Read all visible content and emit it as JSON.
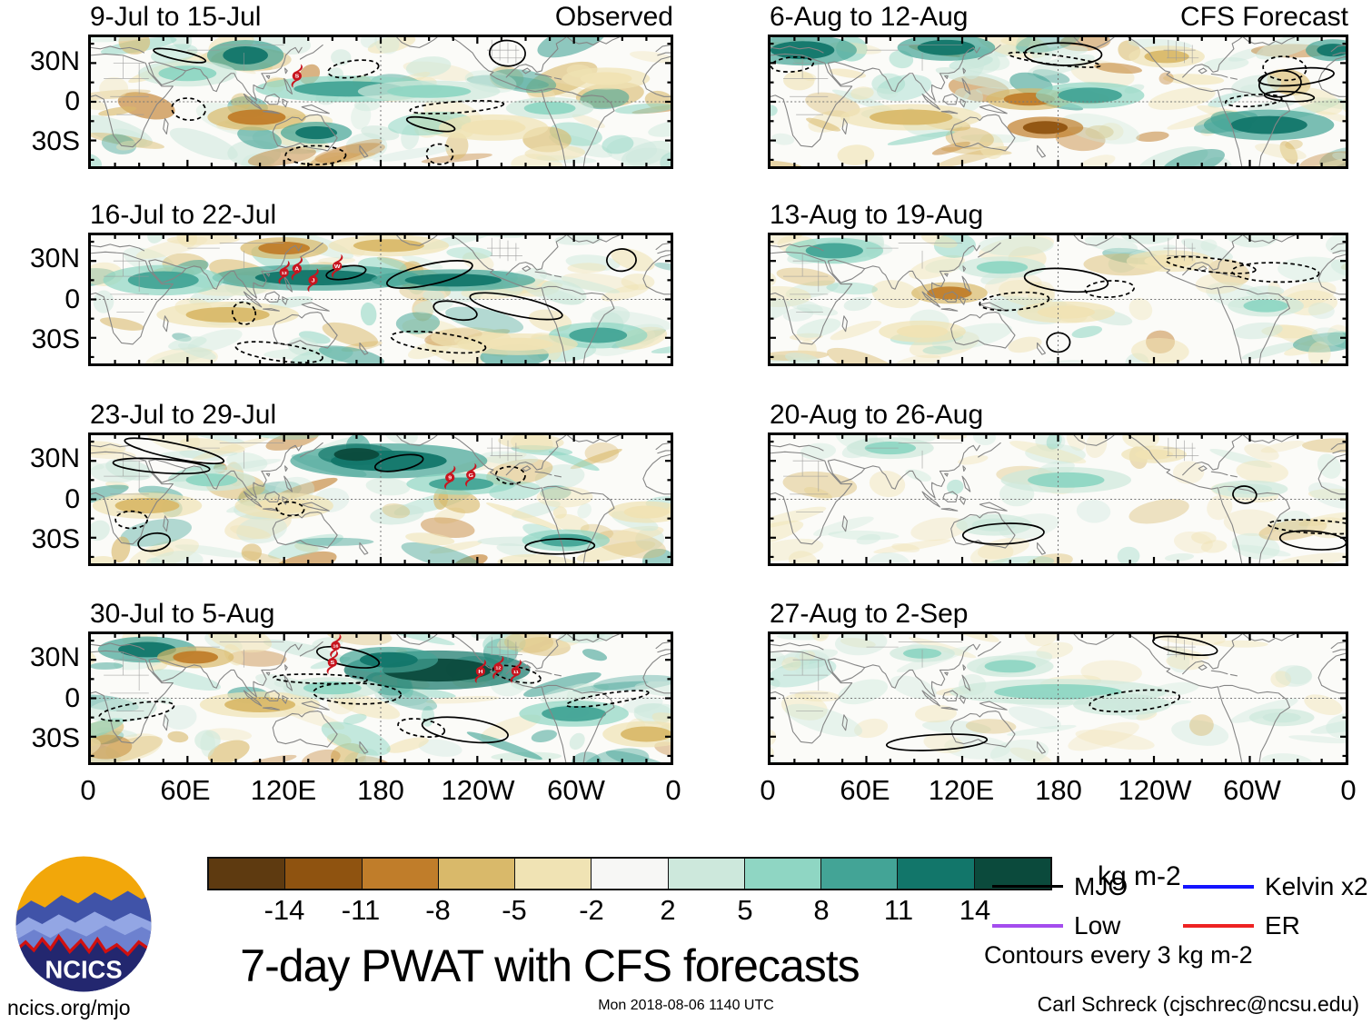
{
  "title": "7-day PWAT with CFS forecasts",
  "figure": {
    "observed_label": "Observed",
    "forecast_label": "CFS Forecast",
    "y_ticks": [
      "30N",
      "0",
      "30S"
    ],
    "x_ticks": [
      "0",
      "60E",
      "120E",
      "180",
      "120W",
      "60W",
      "0"
    ],
    "panels": [
      {
        "id": "obs1",
        "title": "9-Jul to 15-Jul",
        "column": "observed",
        "seed": 7,
        "amp": 1,
        "contours": 8,
        "storms": [
          {
            "label": "S",
            "lon": 128,
            "lat": 20
          }
        ],
        "features": [
          [
            96,
            36,
            14,
            7,
            9
          ],
          [
            160,
            10,
            34,
            6,
            8
          ],
          [
            210,
            8,
            26,
            5,
            7
          ],
          [
            103,
            -12,
            18,
            6,
            2
          ],
          [
            140,
            -24,
            13,
            5,
            9
          ],
          [
            285,
            -5,
            16,
            5,
            7
          ],
          [
            60,
            22,
            18,
            6,
            7
          ],
          [
            250,
            -20,
            20,
            6,
            4
          ],
          [
            320,
            18,
            16,
            5,
            4
          ]
        ]
      },
      {
        "id": "fc1",
        "title": "6-Aug to 12-Aug",
        "column": "forecast",
        "seed": 13,
        "amp": 1,
        "contours": 8,
        "storms": [],
        "features": [
          [
            20,
            40,
            20,
            7,
            9
          ],
          [
            110,
            42,
            18,
            6,
            9
          ],
          [
            162,
            2,
            16,
            5,
            2
          ],
          [
            172,
            -20,
            14,
            5,
            1
          ],
          [
            200,
            5,
            20,
            6,
            8
          ],
          [
            312,
            -18,
            24,
            7,
            9
          ],
          [
            88,
            -12,
            26,
            6,
            3
          ],
          [
            248,
            35,
            14,
            5,
            3
          ],
          [
            352,
            40,
            10,
            5,
            9
          ]
        ]
      },
      {
        "id": "obs2",
        "title": "16-Jul to 22-Jul",
        "column": "observed",
        "seed": 21,
        "amp": 1,
        "contours": 8,
        "storms": [
          {
            "label": "13",
            "lon": 120,
            "lat": 21
          },
          {
            "label": "A",
            "lon": 128,
            "lat": 24
          },
          {
            "label": "J",
            "lon": 138,
            "lat": 15
          },
          {
            "label": "W",
            "lon": 153,
            "lat": 26
          }
        ],
        "features": [
          [
            140,
            17,
            38,
            6,
            9
          ],
          [
            225,
            15,
            30,
            5,
            9
          ],
          [
            45,
            15,
            22,
            7,
            8
          ],
          [
            85,
            -12,
            26,
            6,
            3
          ],
          [
            120,
            40,
            16,
            5,
            2
          ],
          [
            185,
            42,
            22,
            5,
            3
          ],
          [
            315,
            -28,
            18,
            6,
            8
          ],
          [
            265,
            -35,
            22,
            5,
            4
          ]
        ]
      },
      {
        "id": "fc2",
        "title": "13-Aug to 19-Aug",
        "column": "forecast",
        "seed": 29,
        "amp": 0.75,
        "contours": 6,
        "storms": [],
        "features": [
          [
            40,
            38,
            18,
            6,
            8
          ],
          [
            112,
            5,
            14,
            5,
            2
          ],
          [
            145,
            25,
            16,
            5,
            7
          ],
          [
            185,
            -10,
            18,
            5,
            4
          ],
          [
            250,
            30,
            16,
            5,
            4
          ],
          [
            310,
            -5,
            14,
            5,
            7
          ],
          [
            95,
            -25,
            16,
            5,
            4
          ]
        ]
      },
      {
        "id": "obs3",
        "title": "23-Jul to 29-Jul",
        "column": "observed",
        "seed": 35,
        "amp": 1,
        "contours": 8,
        "storms": [
          {
            "label": "9",
            "lon": 223,
            "lat": 17
          },
          {
            "label": "G",
            "lon": 236,
            "lat": 19
          }
        ],
        "features": [
          [
            185,
            30,
            36,
            8,
            9
          ],
          [
            165,
            35,
            14,
            5,
            10
          ],
          [
            35,
            -5,
            20,
            6,
            3
          ],
          [
            230,
            12,
            20,
            5,
            8
          ],
          [
            295,
            -32,
            16,
            5,
            8
          ],
          [
            120,
            -5,
            18,
            6,
            4
          ],
          [
            345,
            -10,
            14,
            5,
            4
          ],
          [
            75,
            15,
            16,
            5,
            7
          ]
        ]
      },
      {
        "id": "fc3",
        "title": "20-Aug to 26-Aug",
        "column": "forecast",
        "seed": 43,
        "amp": 0.45,
        "contours": 4,
        "storms": [],
        "features": [
          [
            75,
            40,
            16,
            5,
            7
          ],
          [
            185,
            15,
            24,
            6,
            7
          ],
          [
            240,
            35,
            12,
            4,
            4
          ],
          [
            140,
            -20,
            14,
            5,
            6
          ],
          [
            300,
            8,
            14,
            4,
            6
          ]
        ]
      },
      {
        "id": "obs4",
        "title": "30-Jul to 5-Aug",
        "column": "observed",
        "seed": 51,
        "amp": 1,
        "contours": 8,
        "storms": [
          {
            "label": "16",
            "lon": 152,
            "lat": 41
          },
          {
            "label": "S",
            "lon": 150,
            "lat": 28
          },
          {
            "label": "H",
            "lon": 242,
            "lat": 21
          },
          {
            "label": "12",
            "lon": 253,
            "lat": 24
          },
          {
            "label": "11",
            "lon": 264,
            "lat": 21
          }
        ],
        "features": [
          [
            215,
            22,
            34,
            9,
            10
          ],
          [
            185,
            30,
            18,
            6,
            9
          ],
          [
            35,
            38,
            18,
            6,
            9
          ],
          [
            65,
            32,
            14,
            5,
            2
          ],
          [
            105,
            -5,
            22,
            6,
            3
          ],
          [
            300,
            -12,
            20,
            6,
            8
          ],
          [
            345,
            -28,
            16,
            6,
            3
          ],
          [
            150,
            8,
            18,
            5,
            7
          ]
        ]
      },
      {
        "id": "fc4",
        "title": "27-Aug to 2-Sep",
        "column": "forecast",
        "seed": 59,
        "amp": 0.4,
        "contours": 3,
        "storms": [],
        "features": [
          [
            180,
            5,
            40,
            6,
            7
          ],
          [
            150,
            25,
            16,
            5,
            7
          ],
          [
            220,
            -5,
            18,
            5,
            6
          ],
          [
            95,
            35,
            12,
            4,
            7
          ],
          [
            320,
            -15,
            12,
            4,
            6
          ]
        ]
      }
    ]
  },
  "colorbar": {
    "units": "kg m-2",
    "boundaries": [
      "-14",
      "-11",
      "-8",
      "-5",
      "-2",
      "2",
      "5",
      "8",
      "11",
      "14"
    ],
    "colors": [
      "#5e3a10",
      "#8f5310",
      "#c07d2a",
      "#d9b96a",
      "#f0e3b4",
      "#f7f7f5",
      "#cde8dc",
      "#8fd6c3",
      "#43a496",
      "#12766a",
      "#0b4a3c"
    ]
  },
  "legend": {
    "items": [
      {
        "label": "MJO",
        "color": "#000000"
      },
      {
        "label": "Low",
        "color": "#a44dee"
      },
      {
        "label": "Kelvin x2",
        "color": "#1414ff"
      },
      {
        "label": "ER",
        "color": "#ee2222"
      }
    ],
    "note": "Contours every 3 kg m-2"
  },
  "logo": {
    "text": "NCICS"
  },
  "footer": {
    "left": "ncics.org/mjo",
    "center": "Mon 2018-08-06 1140 UTC",
    "right": "Carl Schreck (cjschrec@ncsu.edu)"
  },
  "chart_data": {
    "type": "heatmap",
    "subtype": "geographic anomaly maps (equirectangular, lon 0-360, lat 50N-50S)",
    "title": "7-day PWAT with CFS forecasts",
    "units": "kg m-2",
    "contour_interval_note": "Contours every 3 kg m-2",
    "colorbar_boundaries": [
      -14,
      -11,
      -8,
      -5,
      -2,
      2,
      5,
      8,
      11,
      14
    ],
    "colorbar_colors": [
      "#5e3a10",
      "#8f5310",
      "#c07d2a",
      "#d9b96a",
      "#f0e3b4",
      "#f7f7f5",
      "#cde8dc",
      "#8fd6c3",
      "#43a496",
      "#12766a",
      "#0b4a3c"
    ],
    "lon_ticks": [
      "0",
      "60E",
      "120E",
      "180",
      "120W",
      "60W",
      "0"
    ],
    "lat_ticks": [
      "30N",
      "0",
      "30S"
    ],
    "columns": [
      {
        "heading": "Observed",
        "panels": [
          "9-Jul to 15-Jul",
          "16-Jul to 22-Jul",
          "23-Jul to 29-Jul",
          "30-Jul to 5-Aug"
        ]
      },
      {
        "heading": "CFS Forecast",
        "panels": [
          "6-Aug to 12-Aug",
          "13-Aug to 19-Aug",
          "20-Aug to 26-Aug",
          "27-Aug to 2-Sep"
        ]
      }
    ],
    "legend_entries": [
      {
        "label": "MJO",
        "color": "black"
      },
      {
        "label": "Low",
        "color": "purple"
      },
      {
        "label": "Kelvin x2",
        "color": "blue"
      },
      {
        "label": "ER",
        "color": "red"
      }
    ],
    "storm_markers": [
      {
        "panel": "9-Jul to 15-Jul",
        "label": "S",
        "lon_deg_east": 128,
        "lat_deg": 20
      },
      {
        "panel": "16-Jul to 22-Jul",
        "label": "13",
        "lon_deg_east": 120,
        "lat_deg": 21
      },
      {
        "panel": "16-Jul to 22-Jul",
        "label": "A",
        "lon_deg_east": 128,
        "lat_deg": 24
      },
      {
        "panel": "16-Jul to 22-Jul",
        "label": "J",
        "lon_deg_east": 138,
        "lat_deg": 15
      },
      {
        "panel": "16-Jul to 22-Jul",
        "label": "W",
        "lon_deg_east": 153,
        "lat_deg": 26
      },
      {
        "panel": "23-Jul to 29-Jul",
        "label": "9",
        "lon_deg_east": 223,
        "lat_deg": 17
      },
      {
        "panel": "23-Jul to 29-Jul",
        "label": "G",
        "lon_deg_east": 236,
        "lat_deg": 19
      },
      {
        "panel": "30-Jul to 5-Aug",
        "label": "16",
        "lon_deg_east": 152,
        "lat_deg": 41
      },
      {
        "panel": "30-Jul to 5-Aug",
        "label": "S",
        "lon_deg_east": 150,
        "lat_deg": 28
      },
      {
        "panel": "30-Jul to 5-Aug",
        "label": "H",
        "lon_deg_east": 242,
        "lat_deg": 21
      },
      {
        "panel": "30-Jul to 5-Aug",
        "label": "12",
        "lon_deg_east": 253,
        "lat_deg": 24
      },
      {
        "panel": "30-Jul to 5-Aug",
        "label": "11",
        "lon_deg_east": 264,
        "lat_deg": 21
      }
    ],
    "timestamp": "Mon 2018-08-06 1140 UTC",
    "credit": "Carl Schreck (cjschrec@ncsu.edu)",
    "site": "ncics.org/mjo"
  }
}
